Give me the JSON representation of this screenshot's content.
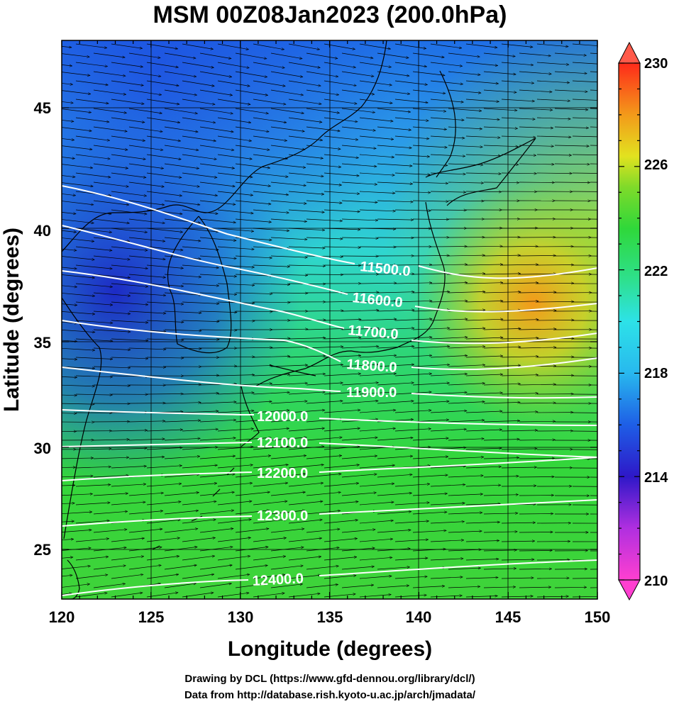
{
  "title": "MSM 00Z08Jan2023 (200.0hPa)",
  "axes": {
    "xlabel": "Longitude (degrees)",
    "ylabel": "Latitude  (degrees)",
    "x_ticks": [
      "120",
      "125",
      "130",
      "135",
      "140",
      "145",
      "150"
    ],
    "y_ticks": [
      "25",
      "30",
      "35",
      "40",
      "45"
    ]
  },
  "colorbar": {
    "labels": [
      "230",
      "226",
      "222",
      "218",
      "214",
      "210"
    ],
    "min": 210,
    "max": 230
  },
  "contours": {
    "labels": [
      "11500.0",
      "11600.0",
      "11700.0",
      "11800.0",
      "11900.0",
      "12000.0",
      "12100.0",
      "12200.0",
      "12300.0",
      "12400.0"
    ]
  },
  "credits": {
    "line1": "Drawing by DCL (https://www.gfd-dennou.org/library/dcl/)",
    "line2": "Data from http://database.rish.kyoto-u.ac.jp/arch/jmadata/"
  },
  "colors": {
    "warm": "#f39a1a",
    "green": "#35d82d",
    "cyan": "#2de2e8",
    "blue": "#1f5ee6",
    "navy": "#1d1bc9",
    "magenta": "#ff3fb8",
    "red": "#ff2a1a"
  }
}
